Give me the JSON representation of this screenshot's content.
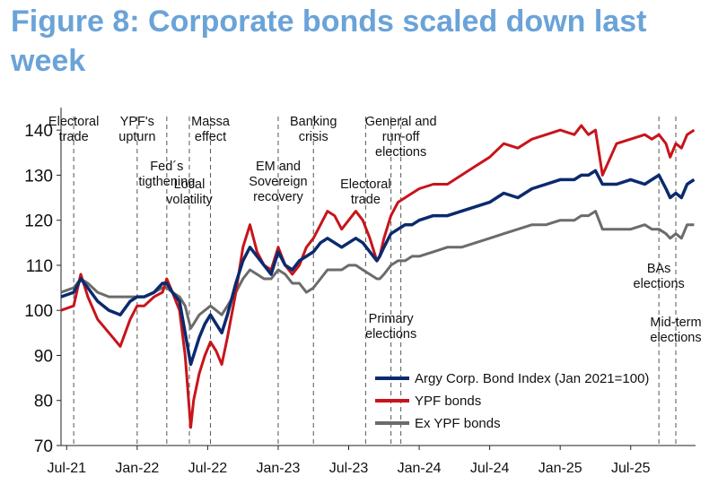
{
  "chart_data": {
    "type": "line",
    "title": "Figure 8: Corporate bonds scaled down last week",
    "xlabel": "",
    "ylabel": "",
    "ylim": [
      70,
      145
    ],
    "yticks": [
      70,
      80,
      90,
      100,
      110,
      120,
      130,
      140
    ],
    "xlim": [
      2021.46,
      2025.96
    ],
    "xticks": [
      {
        "label": "Jul-21",
        "x": 2021.5
      },
      {
        "label": "Jan-22",
        "x": 2022.0
      },
      {
        "label": "Jul-22",
        "x": 2022.5
      },
      {
        "label": "Jan-23",
        "x": 2023.0
      },
      {
        "label": "Jul-23",
        "x": 2023.5
      },
      {
        "label": "Jan-24",
        "x": 2024.0
      },
      {
        "label": "Jul-24",
        "x": 2024.5
      },
      {
        "label": "Jan-25",
        "x": 2025.0
      },
      {
        "label": "Jul-25",
        "x": 2025.5
      }
    ],
    "legend": [
      {
        "label": "Argy Corp. Bond Index (Jan 2021=100)",
        "color": "#0b2a6e"
      },
      {
        "label": "YPF bonds",
        "color": "#c8141b"
      },
      {
        "label": "Ex YPF bonds",
        "color": "#6b6b6b"
      }
    ],
    "events": [
      {
        "x": 2021.55,
        "label": [
          "Electoral",
          "trade"
        ],
        "pos": "top"
      },
      {
        "x": 2022.0,
        "label": [
          "YPF's",
          "upturn"
        ],
        "pos": "top"
      },
      {
        "x": 2022.21,
        "label": [
          "Fed´s",
          "tigthening"
        ],
        "pos": "mid"
      },
      {
        "x": 2022.37,
        "label": [
          "Local",
          "volatility"
        ],
        "pos": "mid"
      },
      {
        "x": 2022.52,
        "label": [
          "Massa",
          "effect"
        ],
        "pos": "top"
      },
      {
        "x": 2023.0,
        "label": [
          "EM and",
          "Sovereign",
          "recovery"
        ],
        "pos": "mid"
      },
      {
        "x": 2023.25,
        "label": [
          "Banking",
          "crisis"
        ],
        "pos": "top"
      },
      {
        "x": 2023.62,
        "label": [
          "Electoral",
          "trade"
        ],
        "pos": "mid"
      },
      {
        "x": 2023.8,
        "label": [
          "Primary",
          "elections"
        ],
        "pos": "low"
      },
      {
        "x": 2023.87,
        "label": [
          "General and",
          "run-off",
          "elections"
        ],
        "pos": "top"
      },
      {
        "x": 2025.7,
        "label": [
          "BAs",
          "elections"
        ],
        "pos": "low"
      },
      {
        "x": 2025.82,
        "label": [
          "Mid-term",
          "elections"
        ],
        "pos": "low"
      }
    ],
    "series": [
      {
        "name": "Argy Corp. Bond Index (Jan 2021=100)",
        "color": "#0b2a6e",
        "x": [
          2021.46,
          2021.55,
          2021.6,
          2021.65,
          2021.72,
          2021.8,
          2021.88,
          2021.95,
          2022.0,
          2022.05,
          2022.12,
          2022.18,
          2022.21,
          2022.25,
          2022.3,
          2022.34,
          2022.38,
          2022.4,
          2022.44,
          2022.48,
          2022.52,
          2022.56,
          2022.6,
          2022.64,
          2022.7,
          2022.75,
          2022.8,
          2022.85,
          2022.9,
          2022.95,
          2023.0,
          2023.05,
          2023.1,
          2023.15,
          2023.2,
          2023.25,
          2023.3,
          2023.35,
          2023.4,
          2023.45,
          2023.5,
          2023.55,
          2023.6,
          2023.65,
          2023.7,
          2023.72,
          2023.75,
          2023.8,
          2023.85,
          2023.9,
          2023.95,
          2024.0,
          2024.1,
          2024.2,
          2024.3,
          2024.4,
          2024.5,
          2024.6,
          2024.7,
          2024.8,
          2024.9,
          2025.0,
          2025.1,
          2025.15,
          2025.2,
          2025.25,
          2025.3,
          2025.4,
          2025.5,
          2025.6,
          2025.65,
          2025.7,
          2025.75,
          2025.78,
          2025.82,
          2025.86,
          2025.9,
          2025.95
        ],
        "values": [
          103,
          104,
          107,
          105,
          102,
          100,
          99,
          102,
          103,
          103,
          104,
          106,
          106,
          104,
          102,
          95,
          88,
          90,
          94,
          97,
          99,
          97,
          95,
          99,
          106,
          111,
          114,
          112,
          110,
          108,
          113,
          110,
          109,
          111,
          112,
          113,
          115,
          116,
          115,
          114,
          115,
          116,
          115,
          113,
          111,
          112,
          114,
          117,
          118,
          119,
          119,
          120,
          121,
          121,
          122,
          123,
          124,
          126,
          125,
          127,
          128,
          129,
          129,
          130,
          130,
          131,
          128,
          128,
          129,
          128,
          129,
          130,
          127,
          125,
          126,
          125,
          128,
          129
        ]
      },
      {
        "name": "YPF bonds",
        "color": "#c8141b",
        "x": [
          2021.46,
          2021.55,
          2021.6,
          2021.65,
          2021.72,
          2021.8,
          2021.88,
          2021.95,
          2022.0,
          2022.05,
          2022.12,
          2022.18,
          2022.21,
          2022.25,
          2022.3,
          2022.34,
          2022.38,
          2022.4,
          2022.44,
          2022.48,
          2022.52,
          2022.56,
          2022.6,
          2022.64,
          2022.7,
          2022.75,
          2022.8,
          2022.85,
          2022.9,
          2022.95,
          2023.0,
          2023.05,
          2023.1,
          2023.15,
          2023.2,
          2023.25,
          2023.3,
          2023.35,
          2023.4,
          2023.45,
          2023.5,
          2023.55,
          2023.6,
          2023.65,
          2023.7,
          2023.72,
          2023.75,
          2023.8,
          2023.85,
          2023.9,
          2023.95,
          2024.0,
          2024.1,
          2024.2,
          2024.3,
          2024.4,
          2024.5,
          2024.6,
          2024.7,
          2024.8,
          2024.9,
          2025.0,
          2025.1,
          2025.15,
          2025.2,
          2025.25,
          2025.3,
          2025.4,
          2025.5,
          2025.6,
          2025.65,
          2025.7,
          2025.75,
          2025.78,
          2025.82,
          2025.86,
          2025.9,
          2025.95
        ],
        "values": [
          100,
          101,
          108,
          103,
          98,
          95,
          92,
          98,
          101,
          101,
          103,
          104,
          107,
          104,
          100,
          90,
          74,
          80,
          86,
          90,
          93,
          91,
          88,
          94,
          104,
          114,
          119,
          113,
          110,
          109,
          114,
          110,
          108,
          110,
          114,
          116,
          119,
          122,
          121,
          118,
          120,
          122,
          120,
          116,
          111,
          112,
          116,
          121,
          124,
          125,
          126,
          127,
          128,
          128,
          130,
          132,
          134,
          137,
          136,
          138,
          139,
          140,
          139,
          141,
          139,
          140,
          130,
          137,
          138,
          139,
          138,
          139,
          137,
          134,
          137,
          136,
          139,
          140
        ]
      },
      {
        "name": "Ex YPF bonds",
        "color": "#6b6b6b",
        "x": [
          2021.46,
          2021.55,
          2021.6,
          2021.65,
          2021.72,
          2021.8,
          2021.88,
          2021.95,
          2022.0,
          2022.05,
          2022.12,
          2022.18,
          2022.21,
          2022.25,
          2022.3,
          2022.34,
          2022.38,
          2022.4,
          2022.44,
          2022.48,
          2022.52,
          2022.56,
          2022.6,
          2022.64,
          2022.7,
          2022.75,
          2022.8,
          2022.85,
          2022.9,
          2022.95,
          2023.0,
          2023.05,
          2023.1,
          2023.15,
          2023.2,
          2023.25,
          2023.3,
          2023.35,
          2023.4,
          2023.45,
          2023.5,
          2023.55,
          2023.6,
          2023.65,
          2023.7,
          2023.72,
          2023.75,
          2023.8,
          2023.85,
          2023.9,
          2023.95,
          2024.0,
          2024.1,
          2024.2,
          2024.3,
          2024.4,
          2024.5,
          2024.6,
          2024.7,
          2024.8,
          2024.9,
          2025.0,
          2025.1,
          2025.15,
          2025.2,
          2025.25,
          2025.3,
          2025.4,
          2025.5,
          2025.6,
          2025.65,
          2025.7,
          2025.75,
          2025.78,
          2025.82,
          2025.86,
          2025.9,
          2025.95
        ],
        "values": [
          104,
          105,
          107,
          106,
          104,
          103,
          103,
          103,
          103,
          103,
          104,
          105,
          105,
          104,
          103,
          101,
          96,
          97,
          99,
          100,
          101,
          100,
          99,
          101,
          104,
          107,
          109,
          108,
          107,
          107,
          109,
          108,
          106,
          106,
          104,
          105,
          107,
          109,
          109,
          109,
          110,
          110,
          109,
          108,
          107,
          107,
          108,
          110,
          111,
          111,
          112,
          112,
          113,
          114,
          114,
          115,
          116,
          117,
          118,
          119,
          119,
          120,
          120,
          121,
          121,
          122,
          118,
          118,
          118,
          119,
          118,
          118,
          117,
          116,
          117,
          116,
          119,
          119
        ]
      }
    ]
  }
}
